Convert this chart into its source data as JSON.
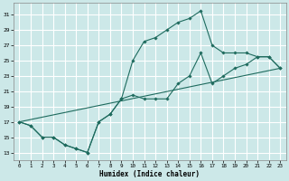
{
  "title": "",
  "xlabel": "Humidex (Indice chaleur)",
  "bg_color": "#cce8e8",
  "grid_color": "#ffffff",
  "line_color": "#1e6b5e",
  "marker_color": "#1e6b5e",
  "xlim": [
    -0.5,
    23.5
  ],
  "ylim": [
    12,
    32.5
  ],
  "xticks": [
    0,
    1,
    2,
    3,
    4,
    5,
    6,
    7,
    8,
    9,
    10,
    11,
    12,
    13,
    14,
    15,
    16,
    17,
    18,
    19,
    20,
    21,
    22,
    23
  ],
  "yticks": [
    13,
    15,
    17,
    19,
    21,
    23,
    25,
    27,
    29,
    31
  ],
  "line2_x": [
    0,
    1,
    2,
    3,
    4,
    5,
    6,
    7,
    8,
    9,
    10,
    11,
    12,
    13,
    14,
    15,
    16,
    17,
    18,
    19,
    20,
    21,
    22,
    23
  ],
  "line2_y": [
    17,
    16.5,
    15,
    15,
    14,
    13.5,
    13,
    17,
    18,
    20,
    25,
    27.5,
    28,
    29,
    30,
    30.5,
    31.5,
    27,
    26,
    26,
    26,
    25.5,
    25.5,
    24
  ],
  "line1_x": [
    0,
    1,
    2,
    3,
    4,
    5,
    6,
    7,
    8,
    9,
    10,
    11,
    12,
    13,
    14,
    15,
    16,
    17,
    18,
    19,
    20,
    21,
    22,
    23
  ],
  "line1_y": [
    17,
    16.5,
    15,
    15,
    14,
    13.5,
    13,
    17,
    18,
    20,
    20.5,
    20,
    20,
    20,
    22,
    23,
    26,
    22,
    23,
    24,
    24.5,
    25.5,
    25.5,
    24
  ],
  "line3_x": [
    0,
    23
  ],
  "line3_y": [
    17,
    24
  ]
}
